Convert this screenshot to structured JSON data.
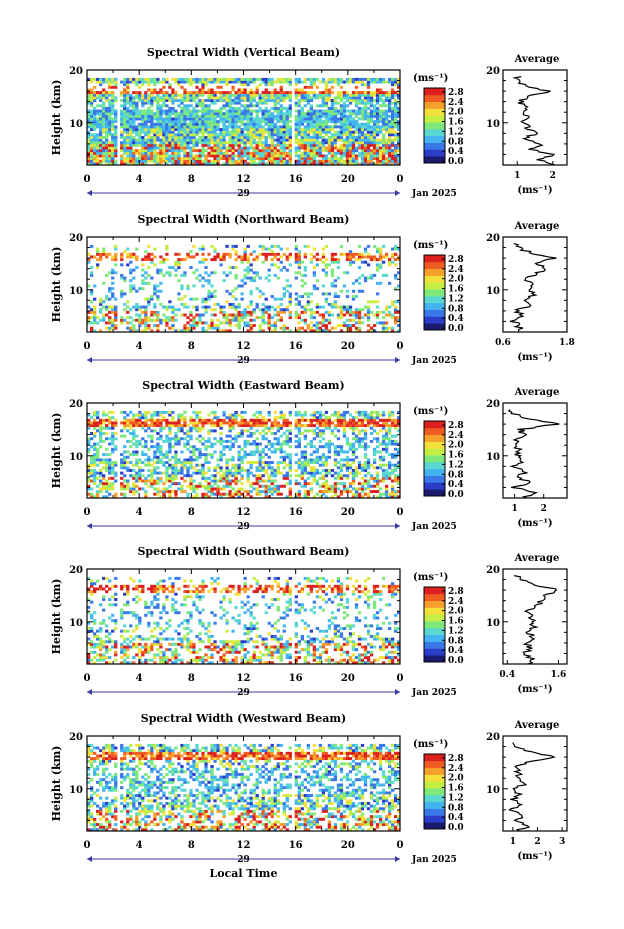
{
  "figure": {
    "date_label": "Jan 2025",
    "day_label": "29",
    "colorbar_unit": "(ms⁻¹)",
    "colorbar_ticks": [
      "0.0",
      "0.4",
      "0.8",
      "1.2",
      "1.6",
      "2.0",
      "2.4",
      "2.8"
    ],
    "colorbar_colors": [
      "#1a1a6e",
      "#2a3cc8",
      "#3a78e8",
      "#44b4f0",
      "#58d8d0",
      "#7ee87a",
      "#c4ee44",
      "#f4e03a",
      "#f6a02c",
      "#ee5c24",
      "#dc2020"
    ],
    "height_axis_label": "Height (km)",
    "time_axis_label": "Local Time",
    "avg_title": "Average",
    "avg_unit": "(ms⁻¹)"
  },
  "chart_data": [
    {
      "type": "heatmap",
      "title": "Spectral Width (Vertical Beam)",
      "ylabel": "Height (km)",
      "xlabel": "",
      "xlim": [
        0,
        24
      ],
      "ylim": [
        2,
        20
      ],
      "xticks": [
        "0",
        "4",
        "8",
        "12",
        "16",
        "20",
        "0"
      ],
      "yticks": [
        "10",
        "20"
      ],
      "zlim": [
        0.0,
        2.8
      ],
      "coverage": "dense",
      "profile": {
        "type": "line",
        "title": "Average",
        "xlim": [
          0.6,
          2.4
        ],
        "xticks": [
          {
            "v": 1,
            "label": "1"
          },
          {
            "v": 2,
            "label": "2"
          }
        ],
        "height": [
          2,
          3,
          4,
          5,
          6,
          7,
          8,
          9,
          10,
          11,
          12,
          13,
          14,
          15,
          16,
          17,
          18,
          19
        ],
        "values": [
          2.1,
          1.6,
          2.0,
          1.3,
          1.7,
          1.2,
          1.5,
          1.3,
          1.2,
          1.25,
          1.15,
          1.2,
          1.1,
          1.3,
          1.9,
          1.2,
          1.05,
          1.0
        ]
      }
    },
    {
      "type": "heatmap",
      "title": "Spectral Width (Northward Beam)",
      "ylabel": "Height (km)",
      "xlabel": "",
      "xlim": [
        0,
        24
      ],
      "ylim": [
        2,
        20
      ],
      "xticks": [
        "0",
        "4",
        "8",
        "12",
        "16",
        "20",
        "0"
      ],
      "yticks": [
        "10",
        "20"
      ],
      "zlim": [
        0.0,
        2.8
      ],
      "coverage": "sparse",
      "profile": {
        "type": "line",
        "title": "Average",
        "xlim": [
          0.6,
          1.8
        ],
        "xticks": [
          {
            "v": 0.6,
            "label": "0.6"
          },
          {
            "v": 1.8,
            "label": "1.8"
          }
        ],
        "height": [
          2,
          3,
          4,
          5,
          6,
          7,
          8,
          9,
          10,
          11,
          12,
          13,
          14,
          15,
          16,
          17,
          18,
          19
        ],
        "values": [
          0.95,
          0.9,
          0.8,
          1.0,
          0.85,
          1.1,
          1.0,
          1.2,
          1.05,
          1.15,
          1.0,
          1.2,
          1.4,
          1.2,
          1.6,
          1.1,
          0.9,
          0.85
        ]
      }
    },
    {
      "type": "heatmap",
      "title": "Spectral Width (Eastward Beam)",
      "ylabel": "Height (km)",
      "xlabel": "",
      "xlim": [
        0,
        24
      ],
      "ylim": [
        2,
        20
      ],
      "xticks": [
        "0",
        "4",
        "8",
        "12",
        "16",
        "20",
        "0"
      ],
      "yticks": [
        "10",
        "20"
      ],
      "zlim": [
        0.0,
        2.8
      ],
      "coverage": "medium",
      "profile": {
        "type": "line",
        "title": "Average",
        "xlim": [
          0.6,
          2.8
        ],
        "xticks": [
          {
            "v": 1,
            "label": "1"
          },
          {
            "v": 2,
            "label": "2"
          }
        ],
        "height": [
          2,
          3,
          4,
          5,
          6,
          7,
          8,
          9,
          10,
          11,
          12,
          13,
          14,
          15,
          16,
          17,
          18,
          19
        ],
        "values": [
          1.3,
          1.7,
          1.0,
          1.5,
          1.1,
          1.4,
          1.0,
          1.3,
          1.1,
          1.2,
          1.0,
          1.1,
          1.3,
          1.2,
          2.5,
          1.4,
          1.0,
          0.8
        ]
      }
    },
    {
      "type": "heatmap",
      "title": "Spectral Width (Southward Beam)",
      "ylabel": "Height (km)",
      "xlabel": "",
      "xlim": [
        0,
        24
      ],
      "ylim": [
        2,
        20
      ],
      "xticks": [
        "0",
        "4",
        "8",
        "12",
        "16",
        "20",
        "0"
      ],
      "yticks": [
        "10",
        "20"
      ],
      "zlim": [
        0.0,
        2.8
      ],
      "coverage": "sparse",
      "profile": {
        "type": "line",
        "title": "Average",
        "xlim": [
          0.3,
          1.8
        ],
        "xticks": [
          {
            "v": 0.4,
            "label": "0.4"
          },
          {
            "v": 1.6,
            "label": "1.6"
          }
        ],
        "height": [
          2,
          3,
          4,
          5,
          6,
          7,
          8,
          9,
          10,
          11,
          12,
          13,
          14,
          15,
          16,
          17,
          18,
          19
        ],
        "values": [
          0.9,
          1.0,
          0.8,
          0.95,
          0.85,
          1.0,
          0.9,
          1.05,
          0.95,
          1.0,
          0.9,
          1.1,
          1.2,
          1.3,
          1.6,
          1.0,
          0.7,
          0.6
        ]
      }
    },
    {
      "type": "heatmap",
      "title": "Spectral Width (Westward Beam)",
      "ylabel": "Height (km)",
      "xlabel": "Local Time",
      "xlim": [
        0,
        24
      ],
      "ylim": [
        2,
        20
      ],
      "xticks": [
        "0",
        "4",
        "8",
        "12",
        "16",
        "20",
        "0"
      ],
      "yticks": [
        "10",
        "20"
      ],
      "zlim": [
        0.0,
        2.8
      ],
      "coverage": "medium",
      "profile": {
        "type": "line",
        "title": "Average",
        "xlim": [
          0.6,
          3.2
        ],
        "xticks": [
          {
            "v": 1,
            "label": "1"
          },
          {
            "v": 2,
            "label": "2"
          },
          {
            "v": 3,
            "label": "3"
          }
        ],
        "height": [
          2,
          3,
          4,
          5,
          6,
          7,
          8,
          9,
          10,
          11,
          12,
          13,
          14,
          15,
          16,
          17,
          18,
          19
        ],
        "values": [
          1.2,
          1.6,
          1.1,
          1.4,
          1.0,
          1.3,
          1.0,
          1.2,
          1.1,
          1.5,
          1.3,
          1.2,
          1.1,
          1.6,
          2.8,
          1.7,
          1.2,
          1.0
        ]
      }
    }
  ]
}
